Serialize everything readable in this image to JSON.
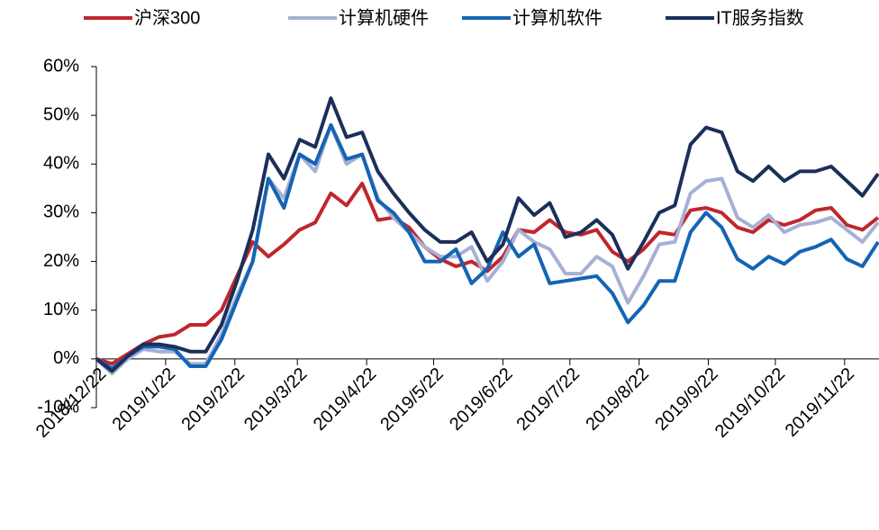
{
  "chart_data": {
    "type": "line",
    "x": [
      "2018/12/22",
      "2018/12/29",
      "2019/1/5",
      "2019/1/12",
      "2019/1/19",
      "2019/1/26",
      "2019/2/2",
      "2019/2/9",
      "2019/2/16",
      "2019/2/23",
      "2019/3/2",
      "2019/3/9",
      "2019/3/16",
      "2019/3/23",
      "2019/3/30",
      "2019/4/6",
      "2019/4/13",
      "2019/4/20",
      "2019/4/27",
      "2019/5/4",
      "2019/5/11",
      "2019/5/18",
      "2019/5/25",
      "2019/6/1",
      "2019/6/8",
      "2019/6/15",
      "2019/6/22",
      "2019/6/29",
      "2019/7/6",
      "2019/7/13",
      "2019/7/20",
      "2019/7/27",
      "2019/8/3",
      "2019/8/10",
      "2019/8/17",
      "2019/8/24",
      "2019/8/31",
      "2019/9/7",
      "2019/9/14",
      "2019/9/21",
      "2019/9/28",
      "2019/10/5",
      "2019/10/12",
      "2019/10/19",
      "2019/10/26",
      "2019/11/2",
      "2019/11/9",
      "2019/11/16",
      "2019/11/23",
      "2019/11/30",
      "2019/12/7"
    ],
    "series": [
      {
        "name": "沪深300",
        "color": "#c0262d",
        "values": [
          0,
          -1,
          1,
          3,
          4.5,
          5,
          7,
          7,
          10,
          17,
          24,
          21,
          23.5,
          26.5,
          28,
          34,
          31.5,
          36,
          28.5,
          29,
          27,
          23,
          20.5,
          19,
          20,
          18,
          21,
          26.5,
          26,
          28.5,
          26,
          25.5,
          26.5,
          22,
          20,
          22.5,
          26,
          25.5,
          30.5,
          31,
          30,
          27,
          26,
          28.5,
          27.5,
          28.5,
          30.5,
          31,
          27.5,
          26.5,
          29
        ]
      },
      {
        "name": "计算机硬件",
        "color": "#a6b0d4",
        "values": [
          0,
          -3,
          0,
          2,
          1.5,
          1.5,
          -1,
          -1,
          5,
          13,
          20,
          37,
          33,
          42,
          38.5,
          48,
          40,
          42,
          33,
          29,
          26,
          23,
          21,
          21,
          23,
          16,
          20,
          26.5,
          24,
          22.5,
          17.5,
          17.5,
          21,
          19,
          11.5,
          17,
          23.5,
          24,
          34,
          36.5,
          37,
          29,
          27,
          29.5,
          26,
          27.5,
          28,
          29,
          26.5,
          24,
          28
        ]
      },
      {
        "name": "计算机软件",
        "color": "#1464b4",
        "values": [
          0,
          -2,
          0.5,
          2.5,
          2.5,
          2,
          -1.5,
          -1.5,
          4,
          12,
          20,
          37,
          31,
          42,
          40,
          48,
          41,
          42,
          32.5,
          30,
          26,
          20,
          20,
          22.5,
          15.5,
          18.5,
          26,
          21,
          23.5,
          15.5,
          16,
          16.5,
          17,
          13.5,
          7.5,
          11,
          16,
          16,
          26,
          30,
          27,
          20.5,
          18.5,
          21,
          19.5,
          22,
          23,
          24.5,
          20.5,
          19,
          24
        ]
      },
      {
        "name": "IT服务指数",
        "color": "#1b2f5a",
        "values": [
          0,
          -2.5,
          0.5,
          3,
          3,
          2.5,
          1.5,
          1.5,
          7,
          16,
          26.5,
          42,
          37,
          45,
          43.5,
          53.5,
          45.5,
          46.5,
          38.5,
          34,
          30,
          26.5,
          24,
          24,
          26,
          20,
          23.5,
          33,
          29.5,
          32,
          25,
          26,
          28.5,
          25.5,
          18.5,
          24,
          30,
          31.5,
          44,
          47.5,
          46.5,
          38.5,
          36.5,
          39.5,
          36.5,
          38.5,
          38.5,
          39.5,
          36.5,
          33.5,
          38
        ]
      }
    ],
    "ylim": [
      -10,
      60
    ],
    "yticks": [
      {
        "value": -10,
        "label": "-10%"
      },
      {
        "value": 0,
        "label": "0%"
      },
      {
        "value": 10,
        "label": "10%"
      },
      {
        "value": 20,
        "label": "20%"
      },
      {
        "value": 30,
        "label": "30%"
      },
      {
        "value": 40,
        "label": "40%"
      },
      {
        "value": 50,
        "label": "50%"
      },
      {
        "value": 60,
        "label": "60%"
      }
    ],
    "xticks": [
      "2018/12/22",
      "2019/1/22",
      "2019/2/22",
      "2019/3/22",
      "2019/4/22",
      "2019/5/22",
      "2019/6/22",
      "2019/7/22",
      "2019/8/22",
      "2019/9/22",
      "2019/10/22",
      "2019/11/22"
    ],
    "legend": "top"
  }
}
